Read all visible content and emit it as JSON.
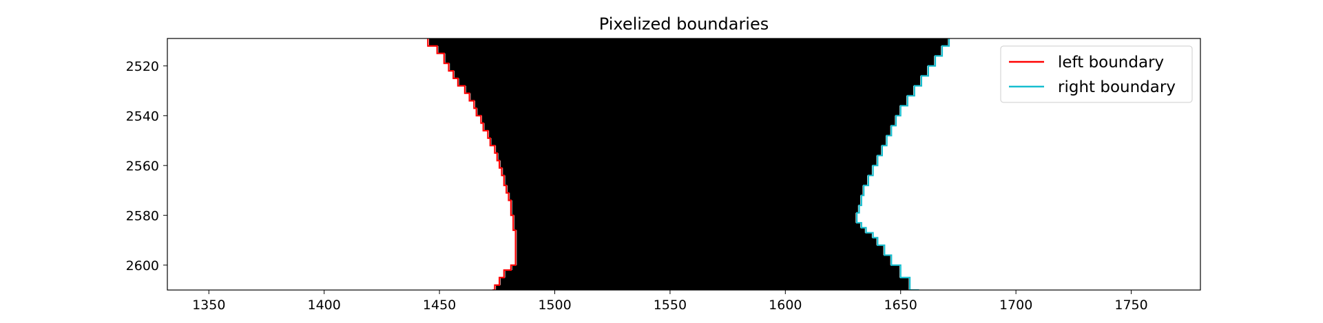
{
  "chart_data": {
    "type": "line",
    "title": "Pixelized boundaries",
    "xlabel": "",
    "ylabel": "",
    "xlim": [
      1332,
      1780
    ],
    "ylim": [
      2610,
      2509
    ],
    "y_inverted": true,
    "x_ticks": [
      1350,
      1400,
      1450,
      1500,
      1550,
      1600,
      1650,
      1700,
      1750
    ],
    "y_ticks": [
      2520,
      2540,
      2560,
      2580,
      2600
    ],
    "grid": false,
    "legend_position": "top-right",
    "background_image": "binary-mask",
    "region_colors": {
      "outside": "#ffffff",
      "inside": "#000000"
    },
    "series": [
      {
        "name": "left boundary",
        "color": "#ff0000",
        "points": [
          [
            1445,
            2509
          ],
          [
            1449,
            2512
          ],
          [
            1452,
            2515
          ],
          [
            1454,
            2519
          ],
          [
            1456,
            2522
          ],
          [
            1458,
            2525
          ],
          [
            1461,
            2528
          ],
          [
            1463,
            2531
          ],
          [
            1465,
            2534
          ],
          [
            1466,
            2537
          ],
          [
            1468,
            2540
          ],
          [
            1469,
            2543
          ],
          [
            1471,
            2546
          ],
          [
            1472,
            2549
          ],
          [
            1474,
            2552
          ],
          [
            1475,
            2555
          ],
          [
            1476,
            2558
          ],
          [
            1477,
            2561
          ],
          [
            1478,
            2564
          ],
          [
            1479,
            2568
          ],
          [
            1480,
            2571
          ],
          [
            1481,
            2574
          ],
          [
            1481,
            2577
          ],
          [
            1482,
            2580
          ],
          [
            1482,
            2583
          ],
          [
            1483,
            2586
          ],
          [
            1483,
            2590
          ],
          [
            1483,
            2594
          ],
          [
            1483,
            2598
          ],
          [
            1481,
            2600
          ],
          [
            1478,
            2602
          ],
          [
            1476,
            2605
          ],
          [
            1474,
            2608
          ],
          [
            1473,
            2610
          ]
        ]
      },
      {
        "name": "right boundary",
        "color": "#17becf",
        "points": [
          [
            1671,
            2509
          ],
          [
            1668,
            2512
          ],
          [
            1665,
            2516
          ],
          [
            1662,
            2520
          ],
          [
            1659,
            2524
          ],
          [
            1656,
            2528
          ],
          [
            1653,
            2532
          ],
          [
            1650,
            2536
          ],
          [
            1648,
            2540
          ],
          [
            1646,
            2544
          ],
          [
            1644,
            2548
          ],
          [
            1642,
            2552
          ],
          [
            1640,
            2556
          ],
          [
            1638,
            2560
          ],
          [
            1636,
            2564
          ],
          [
            1634,
            2568
          ],
          [
            1633,
            2572
          ],
          [
            1632,
            2576
          ],
          [
            1631,
            2579
          ],
          [
            1633,
            2583
          ],
          [
            1635,
            2585
          ],
          [
            1638,
            2587
          ],
          [
            1640,
            2589
          ],
          [
            1643,
            2592
          ],
          [
            1646,
            2596
          ],
          [
            1650,
            2600
          ],
          [
            1654,
            2605
          ],
          [
            1658,
            2610
          ]
        ]
      }
    ]
  }
}
